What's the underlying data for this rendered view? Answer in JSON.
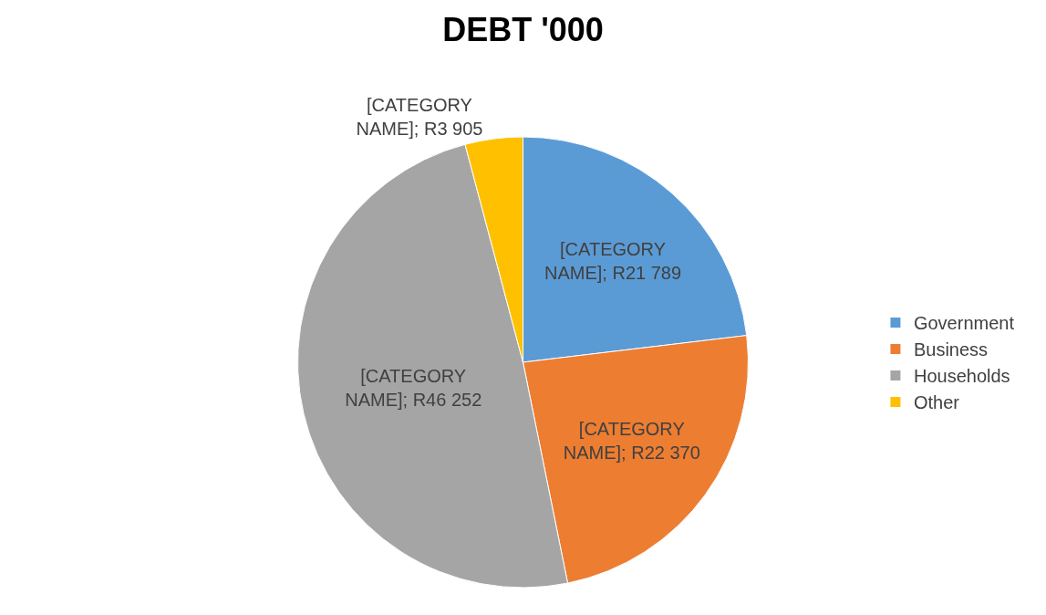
{
  "chart_data": {
    "type": "pie",
    "title": "DEBT '000",
    "categories": [
      "Government",
      "Business",
      "Households",
      "Other"
    ],
    "values": [
      21789,
      22370,
      46252,
      3905
    ],
    "colors": [
      "#5b9bd5",
      "#ed7d31",
      "#a5a5a5",
      "#ffc000"
    ],
    "value_labels": [
      "[CATEGORY NAME]; R21 789",
      "[CATEGORY NAME]; R22 370",
      "[CATEGORY NAME]; R46 252",
      "[CATEGORY NAME]; R3 905"
    ],
    "legend": "right"
  }
}
